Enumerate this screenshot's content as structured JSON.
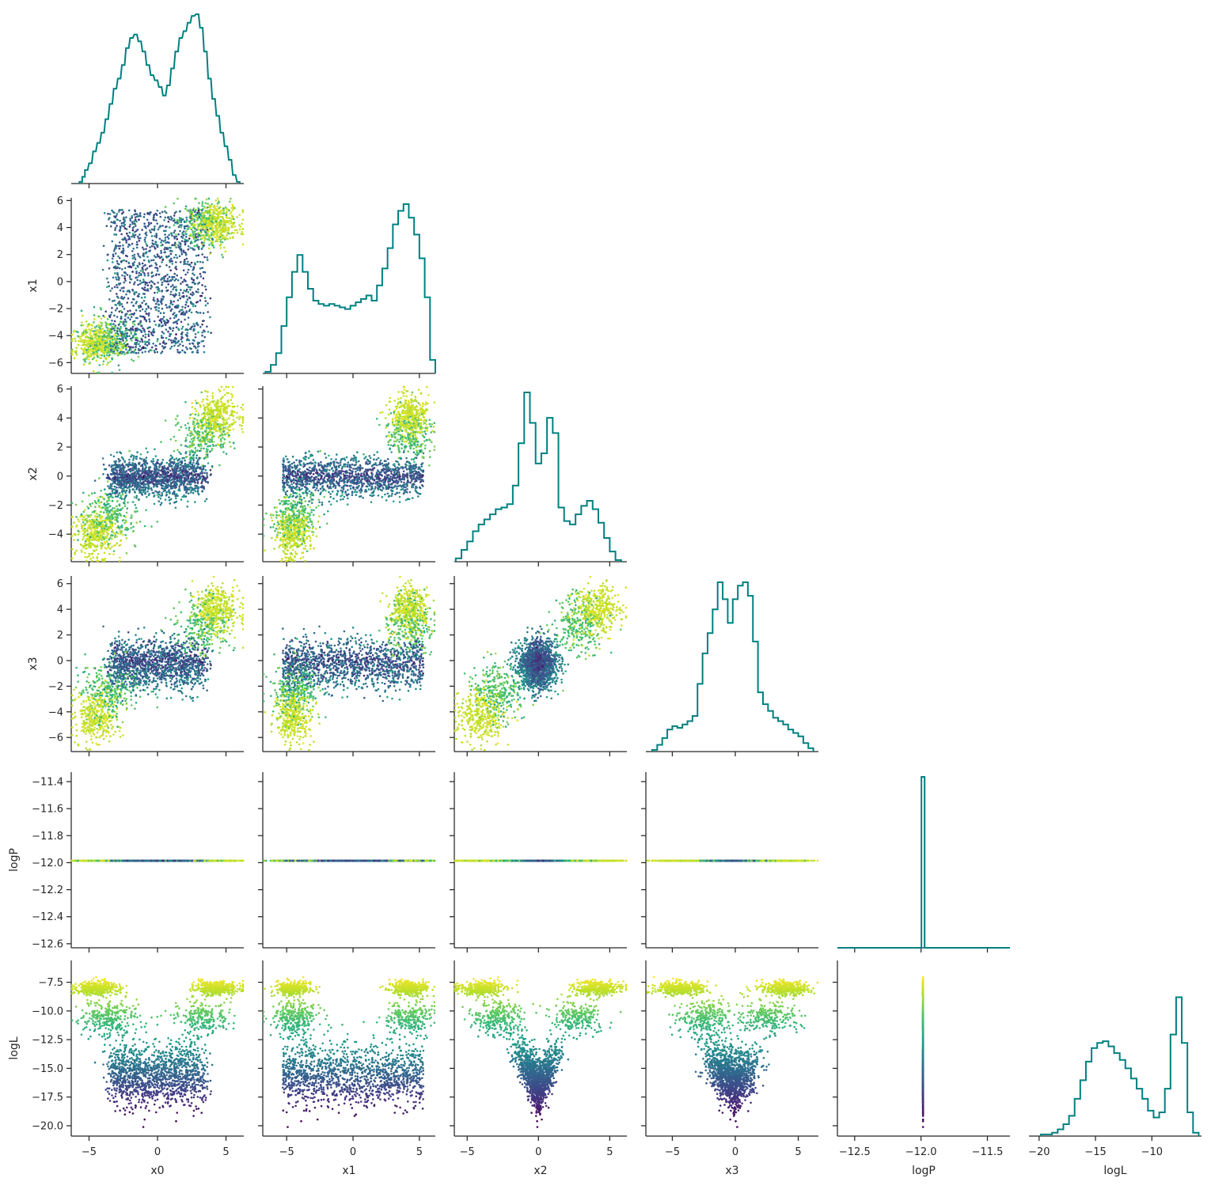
{
  "chart_data": {
    "type": "corner",
    "title": "",
    "variables": [
      "x0",
      "x1",
      "x2",
      "x3",
      "logP",
      "logL"
    ],
    "ticks": {
      "x0": [
        -5,
        0,
        5
      ],
      "x1": [
        -6,
        -4,
        -2,
        0,
        2,
        4,
        6
      ],
      "x2": [
        -4,
        -2,
        0,
        2,
        4,
        6
      ],
      "x3": [
        -6,
        -4,
        -2,
        0,
        2,
        4,
        6
      ],
      "logP": [
        -12.6,
        -12.4,
        -12.2,
        -12.0,
        -11.8,
        -11.6,
        -11.4
      ],
      "logL": [
        -20.0,
        -17.5,
        -15.0,
        -12.5,
        -10.0,
        -7.5
      ]
    },
    "bottom_ticks": {
      "x0": [
        -5,
        0,
        5
      ],
      "x1": [
        -5,
        0,
        5
      ],
      "x2": [
        -5,
        0,
        5
      ],
      "x3": [
        -5,
        0,
        5
      ],
      "logP": [
        -12.5,
        -12.0,
        -11.5
      ],
      "logL": [
        -20,
        -15,
        -10
      ]
    },
    "ranges": {
      "x0": [
        -6.3,
        6.3
      ],
      "x1": [
        -6.8,
        6.2
      ],
      "x2": [
        -5.9,
        6.2
      ],
      "x3": [
        -7.1,
        6.6
      ],
      "logP": [
        -12.63,
        -11.33
      ],
      "logL": [
        -20.9,
        -5.6
      ]
    },
    "histogram_color": "#008080",
    "colormap": "viridis",
    "color_by": "logL",
    "histograms": {
      "x0": [
        [
          -5.6,
          1
        ],
        [
          -5.4,
          4
        ],
        [
          -5.2,
          8
        ],
        [
          -4.9,
          12
        ],
        [
          -4.6,
          19
        ],
        [
          -4.3,
          24
        ],
        [
          -4.0,
          30
        ],
        [
          -3.7,
          38
        ],
        [
          -3.4,
          47
        ],
        [
          -3.1,
          56
        ],
        [
          -2.8,
          62
        ],
        [
          -2.5,
          70
        ],
        [
          -2.2,
          80
        ],
        [
          -1.9,
          86
        ],
        [
          -1.6,
          88
        ],
        [
          -1.3,
          84
        ],
        [
          -1.0,
          78
        ],
        [
          -0.7,
          70
        ],
        [
          -0.4,
          64
        ],
        [
          -0.1,
          61
        ],
        [
          0.2,
          57
        ],
        [
          0.5,
          52
        ],
        [
          0.8,
          58
        ],
        [
          1.1,
          68
        ],
        [
          1.4,
          78
        ],
        [
          1.7,
          86
        ],
        [
          2.0,
          90
        ],
        [
          2.3,
          95
        ],
        [
          2.6,
          99
        ],
        [
          2.9,
          100
        ],
        [
          3.2,
          92
        ],
        [
          3.5,
          78
        ],
        [
          3.8,
          62
        ],
        [
          4.1,
          50
        ],
        [
          4.4,
          40
        ],
        [
          4.7,
          30
        ],
        [
          5.0,
          22
        ],
        [
          5.3,
          14
        ],
        [
          5.6,
          5
        ],
        [
          5.9,
          1
        ]
      ],
      "x1": [
        [
          -6.4,
          1
        ],
        [
          -6.0,
          5
        ],
        [
          -5.6,
          12
        ],
        [
          -5.2,
          28
        ],
        [
          -4.8,
          45
        ],
        [
          -4.4,
          60
        ],
        [
          -4.0,
          70
        ],
        [
          -3.6,
          60
        ],
        [
          -3.2,
          50
        ],
        [
          -2.8,
          43
        ],
        [
          -2.4,
          41
        ],
        [
          -2.0,
          40
        ],
        [
          -1.6,
          41
        ],
        [
          -1.2,
          40
        ],
        [
          -0.8,
          39
        ],
        [
          -0.4,
          38
        ],
        [
          0.0,
          40
        ],
        [
          0.4,
          42
        ],
        [
          0.8,
          44
        ],
        [
          1.2,
          46
        ],
        [
          1.6,
          43
        ],
        [
          2.0,
          52
        ],
        [
          2.4,
          62
        ],
        [
          2.8,
          74
        ],
        [
          3.2,
          88
        ],
        [
          3.6,
          96
        ],
        [
          4.0,
          100
        ],
        [
          4.4,
          92
        ],
        [
          4.8,
          82
        ],
        [
          5.2,
          68
        ],
        [
          5.6,
          45
        ],
        [
          6.0,
          8
        ]
      ],
      "x2": [
        [
          -5.6,
          2
        ],
        [
          -5.2,
          7
        ],
        [
          -4.8,
          12
        ],
        [
          -4.4,
          18
        ],
        [
          -4.0,
          22
        ],
        [
          -3.6,
          25
        ],
        [
          -3.2,
          28
        ],
        [
          -2.8,
          31
        ],
        [
          -2.4,
          32
        ],
        [
          -2.0,
          34
        ],
        [
          -1.6,
          45
        ],
        [
          -1.2,
          70
        ],
        [
          -0.8,
          100
        ],
        [
          -0.4,
          82
        ],
        [
          0.0,
          58
        ],
        [
          0.4,
          64
        ],
        [
          0.8,
          85
        ],
        [
          1.2,
          76
        ],
        [
          1.6,
          32
        ],
        [
          2.0,
          24
        ],
        [
          2.4,
          22
        ],
        [
          2.8,
          28
        ],
        [
          3.2,
          33
        ],
        [
          3.6,
          36
        ],
        [
          4.0,
          31
        ],
        [
          4.4,
          23
        ],
        [
          4.8,
          14
        ],
        [
          5.2,
          6
        ],
        [
          5.6,
          1
        ]
      ],
      "x3": [
        [
          -6.4,
          1
        ],
        [
          -6.0,
          4
        ],
        [
          -5.6,
          8
        ],
        [
          -5.2,
          13
        ],
        [
          -4.8,
          15
        ],
        [
          -4.4,
          14
        ],
        [
          -4.0,
          16
        ],
        [
          -3.6,
          18
        ],
        [
          -3.2,
          21
        ],
        [
          -2.8,
          40
        ],
        [
          -2.4,
          58
        ],
        [
          -2.0,
          70
        ],
        [
          -1.6,
          84
        ],
        [
          -1.2,
          100
        ],
        [
          -0.8,
          90
        ],
        [
          -0.4,
          76
        ],
        [
          0.0,
          90
        ],
        [
          0.4,
          98
        ],
        [
          0.8,
          100
        ],
        [
          1.2,
          92
        ],
        [
          1.6,
          65
        ],
        [
          2.0,
          35
        ],
        [
          2.4,
          28
        ],
        [
          2.8,
          24
        ],
        [
          3.2,
          20
        ],
        [
          3.6,
          18
        ],
        [
          4.0,
          16
        ],
        [
          4.4,
          13
        ],
        [
          4.8,
          11
        ],
        [
          5.2,
          9
        ],
        [
          5.6,
          5
        ],
        [
          6.0,
          2
        ]
      ],
      "logP": [
        [
          -11.985,
          100
        ]
      ],
      "logL": [
        [
          -19.6,
          1
        ],
        [
          -19.1,
          1
        ],
        [
          -18.6,
          2
        ],
        [
          -18.1,
          4
        ],
        [
          -17.6,
          7
        ],
        [
          -17.1,
          12
        ],
        [
          -16.6,
          22
        ],
        [
          -16.1,
          33
        ],
        [
          -15.6,
          44
        ],
        [
          -15.1,
          52
        ],
        [
          -14.6,
          55
        ],
        [
          -14.1,
          56
        ],
        [
          -13.6,
          53
        ],
        [
          -13.1,
          49
        ],
        [
          -12.6,
          45
        ],
        [
          -12.1,
          40
        ],
        [
          -11.6,
          34
        ],
        [
          -11.1,
          28
        ],
        [
          -10.6,
          22
        ],
        [
          -10.1,
          15
        ],
        [
          -9.6,
          11
        ],
        [
          -9.1,
          14
        ],
        [
          -8.6,
          28
        ],
        [
          -8.1,
          60
        ],
        [
          -7.6,
          82
        ],
        [
          -7.1,
          55
        ],
        [
          -6.6,
          14
        ],
        [
          -6.1,
          2
        ]
      ]
    },
    "clusters": [
      {
        "x0": [
          -4.5,
          0.8
        ],
        "x1": [
          -4.5,
          0.7
        ],
        "x2": [
          -4.0,
          0.8
        ],
        "x3": [
          -4.3,
          1.0
        ],
        "logL": [
          -8.0,
          0.3
        ]
      },
      {
        "x0": [
          4.3,
          0.8
        ],
        "x1": [
          4.3,
          0.7
        ],
        "x2": [
          4.1,
          0.8
        ],
        "x3": [
          4.0,
          1.0
        ],
        "logL": [
          -8.0,
          0.3
        ]
      },
      {
        "x0": [
          -3.5,
          1.0
        ],
        "x1": [
          -4.3,
          0.9
        ],
        "x2": [
          -2.8,
          0.9
        ],
        "x3": [
          -2.5,
          1.1
        ],
        "logL": [
          -10.5,
          0.8
        ]
      },
      {
        "x0": [
          3.3,
          1.0
        ],
        "x1": [
          4.3,
          0.9
        ],
        "x2": [
          2.8,
          0.9
        ],
        "x3": [
          2.5,
          1.1
        ],
        "logL": [
          -10.5,
          0.8
        ]
      },
      {
        "x0": [
          0.0,
          2.0
        ],
        "x1": [
          0.0,
          3.2
        ],
        "x2": [
          0.0,
          0.7
        ],
        "x3": [
          -0.3,
          1.0
        ],
        "logL": [
          -14.8,
          1.3
        ]
      }
    ]
  }
}
